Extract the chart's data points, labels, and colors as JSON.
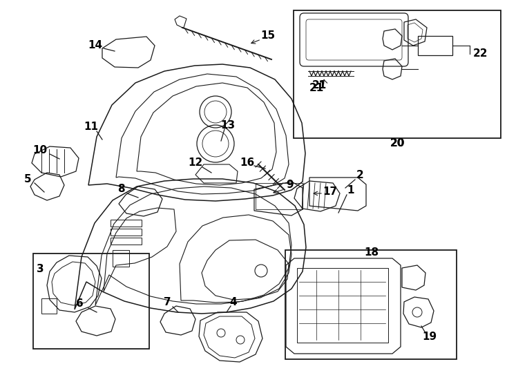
{
  "bg_color": "#ffffff",
  "line_color": "#1a1a1a",
  "fig_width": 7.34,
  "fig_height": 5.4,
  "dpi": 100,
  "label_fontsize": 11
}
